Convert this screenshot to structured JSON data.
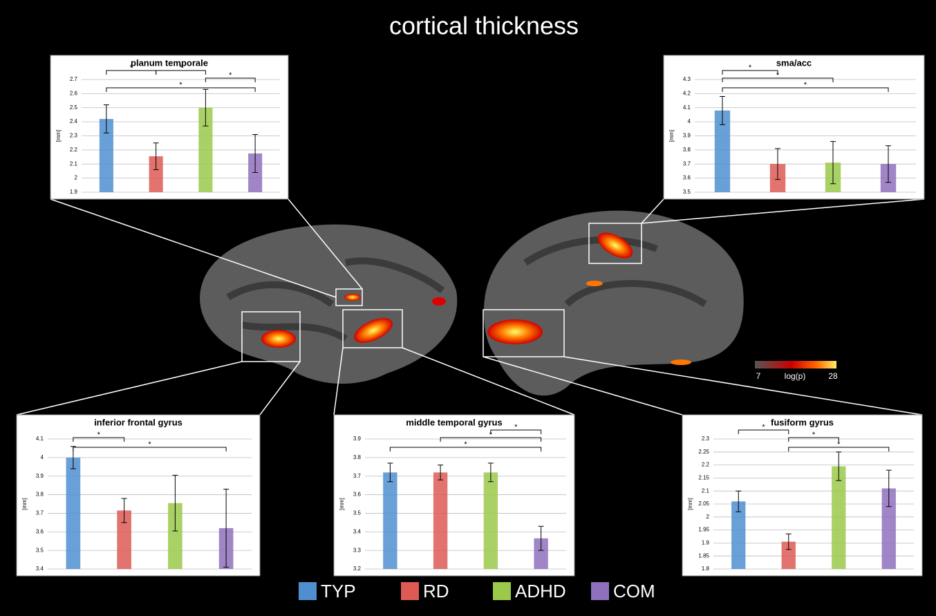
{
  "title": "cortical thickness",
  "legend": [
    {
      "name": "TYP",
      "color": "#4f8fd0"
    },
    {
      "name": "RD",
      "color": "#dd5a55"
    },
    {
      "name": "ADHD",
      "color": "#9bc94a"
    },
    {
      "name": "COM",
      "color": "#8f70bd"
    }
  ],
  "colorbar": {
    "label": "log(p)",
    "ticks": [
      7,
      28
    ]
  },
  "chart_data": [
    {
      "type": "bar",
      "title": "planum temporale",
      "ylabel": "[mm]",
      "values": [
        2.42,
        2.155,
        2.5,
        2.175
      ],
      "errors": [
        0.1,
        0.095,
        0.13,
        0.135
      ],
      "ylim": [
        1.9,
        2.7
      ],
      "yticks": [
        1.9,
        2,
        2.1,
        2.2,
        2.3,
        2.4,
        2.5,
        2.6,
        2.7
      ],
      "grid": true,
      "significance": [
        {
          "from": 0,
          "to": 1,
          "label": "*"
        },
        {
          "from": 1,
          "to": 2,
          "label": "*"
        },
        {
          "from": 2,
          "to": 3,
          "label": "*"
        },
        {
          "from": 0,
          "to": 3,
          "label": "*"
        }
      ]
    },
    {
      "type": "bar",
      "title": "sma/acc",
      "ylabel": "[mm]",
      "values": [
        4.08,
        3.7,
        3.71,
        3.7
      ],
      "errors": [
        0.1,
        0.11,
        0.15,
        0.13
      ],
      "ylim": [
        3.5,
        4.3
      ],
      "yticks": [
        3.5,
        3.6,
        3.7,
        3.8,
        3.9,
        4,
        4.1,
        4.2,
        4.3
      ],
      "grid": true,
      "significance": [
        {
          "from": 0,
          "to": 1,
          "label": "*"
        },
        {
          "from": 0,
          "to": 2,
          "label": "*"
        },
        {
          "from": 0,
          "to": 3,
          "label": "*"
        }
      ]
    },
    {
      "type": "bar",
      "title": "inferior frontal gyrus",
      "ylabel": "[mm]",
      "values": [
        4.0,
        3.715,
        3.755,
        3.62
      ],
      "errors": [
        0.06,
        0.065,
        0.15,
        0.21
      ],
      "ylim": [
        3.4,
        4.1
      ],
      "yticks": [
        3.4,
        3.5,
        3.6,
        3.7,
        3.8,
        3.9,
        4,
        4.1
      ],
      "grid": true,
      "significance": [
        {
          "from": 0,
          "to": 1,
          "label": "*"
        },
        {
          "from": 0,
          "to": 3,
          "label": "*"
        }
      ]
    },
    {
      "type": "bar",
      "title": "middle temporal gyrus",
      "ylabel": "[mm]",
      "values": [
        3.72,
        3.72,
        3.72,
        3.365
      ],
      "errors": [
        0.05,
        0.04,
        0.05,
        0.065
      ],
      "ylim": [
        3.2,
        3.9
      ],
      "yticks": [
        3.2,
        3.3,
        3.4,
        3.5,
        3.6,
        3.7,
        3.8,
        3.9
      ],
      "grid": true,
      "significance": [
        {
          "from": 2,
          "to": 3,
          "label": "*"
        },
        {
          "from": 1,
          "to": 3,
          "label": "*"
        },
        {
          "from": 0,
          "to": 3,
          "label": "*"
        }
      ]
    },
    {
      "type": "bar",
      "title": "fusiform gyrus",
      "ylabel": "[mm]",
      "values": [
        2.06,
        1.905,
        2.195,
        2.11
      ],
      "errors": [
        0.04,
        0.03,
        0.055,
        0.07
      ],
      "ylim": [
        1.8,
        2.3
      ],
      "yticks": [
        1.8,
        1.85,
        1.9,
        1.95,
        2,
        2.05,
        2.1,
        2.15,
        2.2,
        2.25,
        2.3
      ],
      "grid": true,
      "significance": [
        {
          "from": 0,
          "to": 1,
          "label": "*"
        },
        {
          "from": 1,
          "to": 2,
          "label": "*"
        },
        {
          "from": 1,
          "to": 3,
          "label": "*"
        }
      ]
    }
  ]
}
